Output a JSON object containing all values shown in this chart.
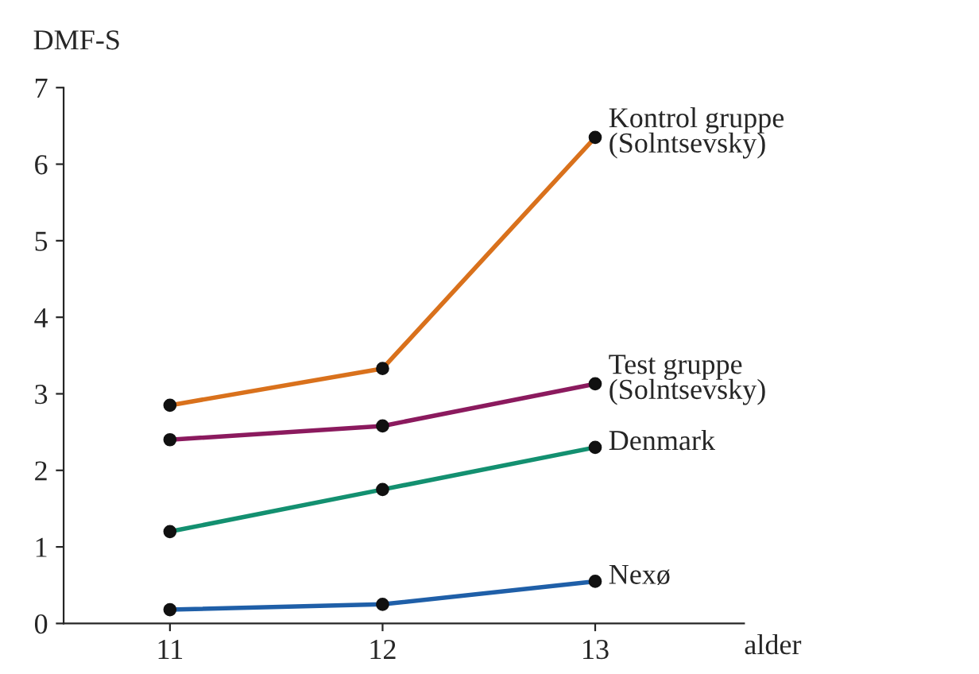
{
  "chart_data": {
    "type": "line",
    "xlabel": "alder",
    "ylabel": "DMF-S",
    "x": [
      11,
      12,
      13
    ],
    "xlim": [
      10.5,
      13.7
    ],
    "xticks": [
      11,
      12,
      13
    ],
    "ylim": [
      0,
      7
    ],
    "yticks": [
      0,
      1,
      2,
      3,
      4,
      5,
      6,
      7
    ],
    "grid": false,
    "legend": false,
    "marker": "circle",
    "line_style": "solid",
    "series": [
      {
        "name": "Kontrol gruppe\n(Solntsevsky)",
        "color": "#d9711c",
        "values": [
          2.85,
          3.33,
          6.35
        ]
      },
      {
        "name": "Test gruppe\n(Solntsevsky)",
        "color": "#8b1a5e",
        "values": [
          2.4,
          2.58,
          3.13
        ]
      },
      {
        "name": "Denmark",
        "color": "#139070",
        "values": [
          1.2,
          1.75,
          2.3
        ]
      },
      {
        "name": "Nexø",
        "color": "#1f5fa8",
        "values": [
          0.18,
          0.25,
          0.55
        ]
      }
    ]
  }
}
